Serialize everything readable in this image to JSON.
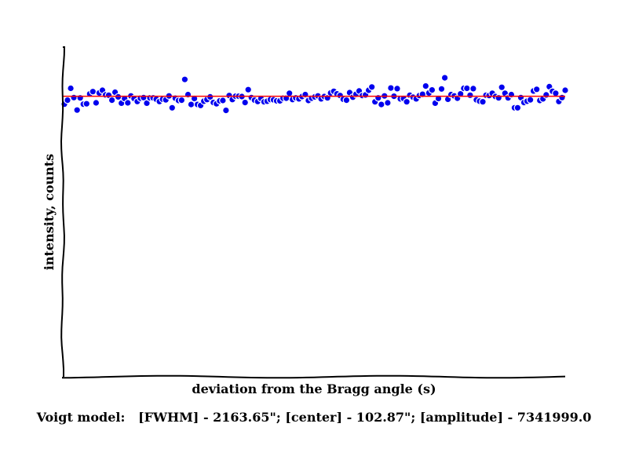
{
  "chart_data": {
    "type": "scatter",
    "xlabel": "deviation from the Bragg angle (s)",
    "ylabel": "intensity, counts",
    "grid": false,
    "colors": {
      "points": "#0000ee",
      "fit": "#ff0000",
      "axis": "#000000"
    },
    "y_range_fraction_of_axis": [
      0.0,
      1.0
    ],
    "series": [
      {
        "marker": "circle",
        "values": [
          0.827,
          0.839,
          0.875,
          0.847,
          0.809,
          0.846,
          0.827,
          0.828,
          0.858,
          0.865,
          0.831,
          0.861,
          0.869,
          0.855,
          0.854,
          0.839,
          0.863,
          0.849,
          0.83,
          0.844,
          0.831,
          0.852,
          0.844,
          0.835,
          0.845,
          0.847,
          0.83,
          0.846,
          0.846,
          0.842,
          0.835,
          0.842,
          0.84,
          0.852,
          0.816,
          0.845,
          0.838,
          0.839,
          0.902,
          0.856,
          0.826,
          0.844,
          0.826,
          0.823,
          0.836,
          0.841,
          0.849,
          0.832,
          0.828,
          0.837,
          0.838,
          0.808,
          0.853,
          0.841,
          0.851,
          0.851,
          0.85,
          0.832,
          0.871,
          0.847,
          0.839,
          0.835,
          0.844,
          0.834,
          0.836,
          0.841,
          0.84,
          0.837,
          0.837,
          0.845,
          0.845,
          0.86,
          0.841,
          0.846,
          0.843,
          0.85,
          0.856,
          0.838,
          0.845,
          0.849,
          0.852,
          0.843,
          0.85,
          0.846,
          0.861,
          0.866,
          0.858,
          0.853,
          0.842,
          0.839,
          0.862,
          0.848,
          0.857,
          0.867,
          0.853,
          0.855,
          0.869,
          0.879,
          0.834,
          0.846,
          0.826,
          0.852,
          0.831,
          0.876,
          0.851,
          0.874,
          0.843,
          0.844,
          0.834,
          0.854,
          0.848,
          0.843,
          0.853,
          0.857,
          0.882,
          0.861,
          0.87,
          0.83,
          0.844,
          0.873,
          0.907,
          0.842,
          0.856,
          0.852,
          0.845,
          0.858,
          0.875,
          0.875,
          0.854,
          0.874,
          0.84,
          0.836,
          0.834,
          0.854,
          0.853,
          0.86,
          0.85,
          0.846,
          0.878,
          0.86,
          0.846,
          0.856,
          0.816,
          0.816,
          0.847,
          0.832,
          0.836,
          0.84,
          0.867,
          0.872,
          0.838,
          0.843,
          0.855,
          0.88,
          0.866,
          0.86,
          0.835,
          0.847,
          0.869
        ]
      }
    ],
    "fit_line_fraction": 0.851,
    "caption": "Voigt model:   [FWHM] - 2163.65\"; [center] - 102.87\"; [amplitude] - 7341999.0"
  }
}
